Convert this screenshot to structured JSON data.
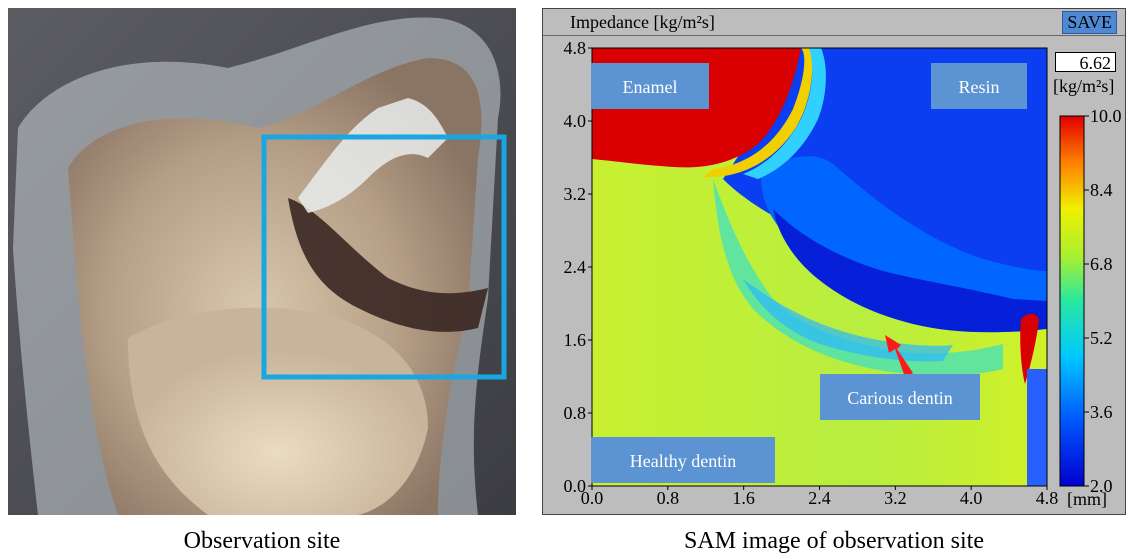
{
  "photo": {
    "caption": "Observation site"
  },
  "sam": {
    "caption": "SAM image of observation site",
    "title": "Impedance [kg/m²s]",
    "save_label": "SAVE",
    "readout_value": "6.62",
    "readout_unit": "[kg/m²s]",
    "x_unit": "[mm]",
    "x_ticks": [
      "0.0",
      "0.8",
      "1.6",
      "2.4",
      "3.2",
      "4.0",
      "4.8"
    ],
    "y_ticks": [
      "0.0",
      "0.8",
      "1.6",
      "2.4",
      "3.2",
      "4.0",
      "4.8"
    ],
    "colorbar_ticks": [
      "10.0",
      "8.4",
      "6.8",
      "5.2",
      "3.6",
      "2.0"
    ],
    "labels": {
      "enamel": "Enamel",
      "resin": "Resin",
      "carious": "Carious dentin",
      "healthy": "Healthy dentin"
    }
  },
  "colors": {
    "box_outline": "#1aa6e0",
    "label_bg": "#5b93d3"
  }
}
